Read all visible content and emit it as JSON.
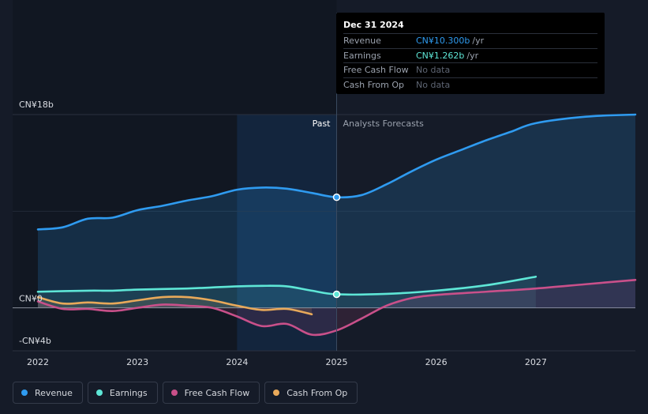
{
  "tooltip": {
    "date": "Dec 31 2024",
    "rows": [
      {
        "label": "Revenue",
        "value": "CN¥10.300b",
        "unit": "/yr",
        "color": "#2f9bf0"
      },
      {
        "label": "Earnings",
        "value": "CN¥1.262b",
        "unit": "/yr",
        "color": "#5ee6d6"
      },
      {
        "label": "Free Cash Flow",
        "value": "No data",
        "unit": ""
      },
      {
        "label": "Cash From Op",
        "value": "No data",
        "unit": ""
      }
    ]
  },
  "legend": [
    {
      "label": "Revenue",
      "color": "#2f9bf0"
    },
    {
      "label": "Earnings",
      "color": "#5ee6d6"
    },
    {
      "label": "Free Cash Flow",
      "color": "#c9508a"
    },
    {
      "label": "Cash From Op",
      "color": "#e8a95a"
    }
  ],
  "chart_data": {
    "type": "line",
    "ytick_labels": [
      "CN¥18b",
      "CN¥0",
      "-CN¥4b"
    ],
    "ylim": [
      -4,
      18
    ],
    "x_ticks": [
      2022,
      2023,
      2024,
      2025,
      2026,
      2027
    ],
    "xlim": [
      2022,
      2028
    ],
    "past_label": "Past",
    "forecast_label": "Analysts Forecasts",
    "divider_x": 2025,
    "highlight_band": [
      2024,
      2025
    ],
    "series": [
      {
        "name": "Revenue",
        "color": "#2f9bf0",
        "points": [
          [
            2022,
            7.3
          ],
          [
            2022.25,
            7.5
          ],
          [
            2022.5,
            8.3
          ],
          [
            2022.75,
            8.4
          ],
          [
            2023,
            9.1
          ],
          [
            2023.25,
            9.5
          ],
          [
            2023.5,
            10.0
          ],
          [
            2023.75,
            10.4
          ],
          [
            2024,
            11.0
          ],
          [
            2024.25,
            11.2
          ],
          [
            2024.5,
            11.1
          ],
          [
            2024.75,
            10.7
          ],
          [
            2025,
            10.3
          ],
          [
            2025.25,
            10.5
          ],
          [
            2025.5,
            11.5
          ],
          [
            2025.75,
            12.7
          ],
          [
            2026,
            13.8
          ],
          [
            2026.25,
            14.7
          ],
          [
            2026.5,
            15.6
          ],
          [
            2026.75,
            16.4
          ],
          [
            2027,
            17.2
          ],
          [
            2027.5,
            17.8
          ],
          [
            2028,
            18.0
          ]
        ]
      },
      {
        "name": "Earnings",
        "color": "#5ee6d6",
        "points": [
          [
            2022,
            1.5
          ],
          [
            2022.5,
            1.6
          ],
          [
            2022.75,
            1.6
          ],
          [
            2023,
            1.7
          ],
          [
            2023.5,
            1.8
          ],
          [
            2023.75,
            1.9
          ],
          [
            2024,
            2.0
          ],
          [
            2024.25,
            2.05
          ],
          [
            2024.5,
            2.0
          ],
          [
            2024.75,
            1.6
          ],
          [
            2025,
            1.262
          ],
          [
            2025.5,
            1.3
          ],
          [
            2026,
            1.6
          ],
          [
            2026.5,
            2.1
          ],
          [
            2027,
            2.9
          ]
        ]
      },
      {
        "name": "Free Cash Flow",
        "color": "#c9508a",
        "points": [
          [
            2022,
            0.6
          ],
          [
            2022.25,
            -0.1
          ],
          [
            2022.5,
            -0.1
          ],
          [
            2022.75,
            -0.3
          ],
          [
            2023,
            0.0
          ],
          [
            2023.25,
            0.3
          ],
          [
            2023.5,
            0.2
          ],
          [
            2023.75,
            0.0
          ],
          [
            2024,
            -0.8
          ],
          [
            2024.25,
            -1.7
          ],
          [
            2024.5,
            -1.5
          ],
          [
            2024.75,
            -2.5
          ],
          [
            2025,
            -2.1
          ],
          [
            2025.25,
            -1.0
          ],
          [
            2025.5,
            0.2
          ],
          [
            2025.75,
            0.9
          ],
          [
            2026,
            1.2
          ],
          [
            2026.5,
            1.5
          ],
          [
            2027,
            1.8
          ],
          [
            2027.5,
            2.2
          ],
          [
            2028,
            2.6
          ]
        ]
      },
      {
        "name": "Cash From Op",
        "color": "#e8a95a",
        "points": [
          [
            2022,
            1.0
          ],
          [
            2022.25,
            0.4
          ],
          [
            2022.5,
            0.5
          ],
          [
            2022.75,
            0.4
          ],
          [
            2023,
            0.7
          ],
          [
            2023.25,
            1.0
          ],
          [
            2023.5,
            1.0
          ],
          [
            2023.75,
            0.7
          ],
          [
            2024,
            0.2
          ],
          [
            2024.25,
            -0.2
          ],
          [
            2024.5,
            -0.1
          ],
          [
            2024.75,
            -0.6
          ]
        ]
      }
    ],
    "markers": [
      {
        "series": "Revenue",
        "x": 2025,
        "y": 10.3
      },
      {
        "series": "Earnings",
        "x": 2025,
        "y": 1.262
      }
    ]
  }
}
